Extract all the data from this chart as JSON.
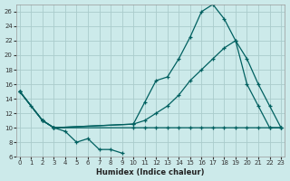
{
  "xlabel": "Humidex (Indice chaleur)",
  "bg_color": "#cceaea",
  "grid_color": "#aacccc",
  "line_color": "#006060",
  "xlim": [
    0,
    23
  ],
  "ylim": [
    6,
    27
  ],
  "yticks": [
    6,
    8,
    10,
    12,
    14,
    16,
    18,
    20,
    22,
    24,
    26
  ],
  "xticks": [
    0,
    1,
    2,
    3,
    4,
    5,
    6,
    7,
    8,
    9,
    10,
    11,
    12,
    13,
    14,
    15,
    16,
    17,
    18,
    19,
    20,
    21,
    22,
    23
  ],
  "series1_x": [
    0,
    1,
    2,
    3,
    4,
    5,
    6,
    7,
    8,
    9
  ],
  "series1_y": [
    15,
    13,
    11,
    10,
    9.5,
    8,
    8.5,
    7,
    7,
    6.5
  ],
  "series2_x": [
    0,
    2,
    3,
    10,
    11,
    12,
    13,
    14,
    15,
    16,
    17,
    18,
    19,
    20,
    21,
    22,
    23
  ],
  "series2_y": [
    15,
    11,
    10,
    10.5,
    13.5,
    16.5,
    17,
    19.5,
    22.5,
    26,
    27,
    25,
    22,
    16,
    13,
    10,
    10
  ],
  "series3_x": [
    0,
    2,
    3,
    10,
    11,
    12,
    13,
    14,
    15,
    16,
    17,
    18,
    19,
    20,
    21,
    22,
    23
  ],
  "series3_y": [
    15,
    11,
    10,
    10.5,
    11,
    12,
    13,
    14.5,
    16.5,
    18,
    19.5,
    21,
    22,
    19.5,
    16,
    13,
    10
  ],
  "series4_x": [
    0,
    2,
    3,
    10,
    11,
    12,
    13,
    14,
    15,
    16,
    17,
    18,
    19,
    20,
    21,
    22,
    23
  ],
  "series4_y": [
    15,
    11,
    10,
    10,
    10,
    10,
    10,
    10,
    10,
    10,
    10,
    10,
    10,
    10,
    10,
    10,
    10
  ]
}
